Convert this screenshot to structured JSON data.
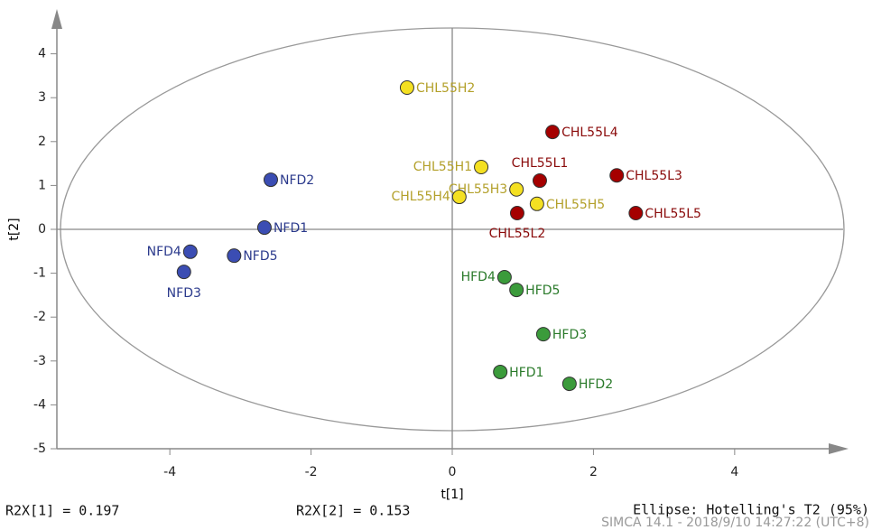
{
  "chart_data": {
    "type": "scatter",
    "x_label": "t[1]",
    "y_label": "t[2]",
    "xlim": [
      -5.6,
      5.6
    ],
    "xticks": [
      -4,
      -2,
      0,
      2,
      4
    ],
    "ylim": [
      -5,
      5
    ],
    "yticks": [
      -5,
      -4,
      -3,
      -2,
      -1,
      0,
      1,
      2,
      3,
      4
    ],
    "series": [
      {
        "color": "#3b4db3",
        "label_color": "#2b3a8c",
        "labels": [
          "NFD2",
          "NFD1",
          "NFD4",
          "NFD5",
          "NFD3"
        ],
        "x": [
          -2.57,
          -2.66,
          -3.71,
          -3.09,
          -3.8
        ],
        "values": [
          1.13,
          0.04,
          -0.51,
          -0.6,
          -0.97
        ]
      },
      {
        "color": "#f4e022",
        "label_color": "#b3a02a",
        "labels": [
          "CHL55H2",
          "CHL55H1",
          "CHL55H3",
          "CHL55H4",
          "CHL55H5"
        ],
        "x": [
          -0.64,
          0.41,
          0.91,
          0.1,
          1.2
        ],
        "values": [
          3.23,
          1.42,
          0.91,
          0.74,
          0.58
        ]
      },
      {
        "color": "#a50000",
        "label_color": "#8a0a0a",
        "labels": [
          "CHL55L4",
          "CHL55L1",
          "CHL55L3",
          "CHL55L5",
          "CHL55L2"
        ],
        "x": [
          1.42,
          1.24,
          2.33,
          2.6,
          0.92
        ],
        "values": [
          2.22,
          1.11,
          1.23,
          0.37,
          0.37
        ]
      },
      {
        "color": "#3b9b3b",
        "label_color": "#2a7a2a",
        "labels": [
          "HFD4",
          "HFD5",
          "HFD3",
          "HFD1",
          "HFD2"
        ],
        "x": [
          0.74,
          0.91,
          1.29,
          0.68,
          1.66
        ],
        "values": [
          -1.09,
          -1.38,
          -2.39,
          -3.25,
          -3.52
        ]
      }
    ],
    "footer": {
      "r2x1": "R2X[1] = 0.197",
      "r2x2": "R2X[2] = 0.153",
      "ellipse": "Ellipse: Hotelling's T2 (95%)",
      "stamp": "SIMCA 14.1 - 2018/9/10 14:27:22 (UTC+8)"
    }
  }
}
